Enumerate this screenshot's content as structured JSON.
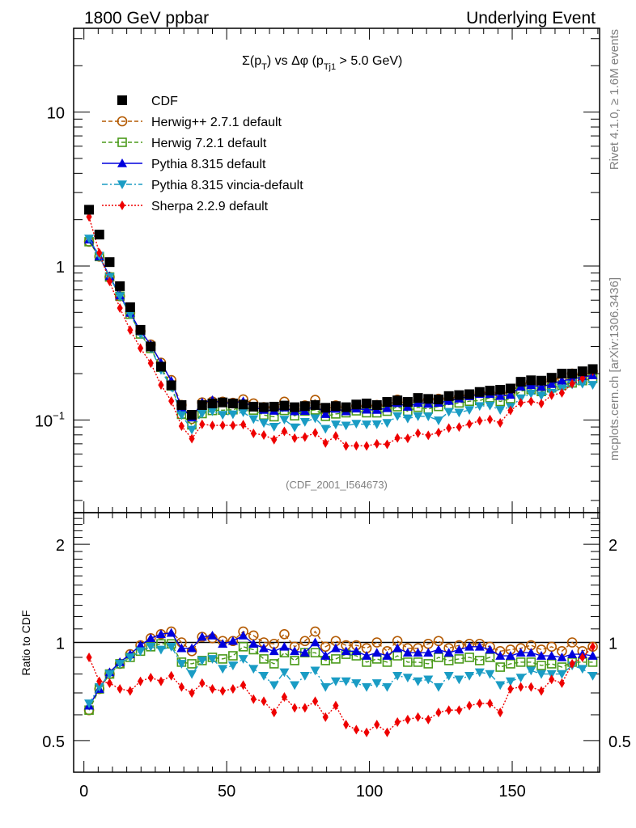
{
  "header": {
    "left": "1800 GeV ppbar",
    "right": "Underlying Event"
  },
  "side_text": {
    "rivet": "Rivet 4.1.0, ≥ 1.6M events",
    "mcplots": "mcplots.cern.ch [arXiv:1306.3436]"
  },
  "analysis_id": "(CDF_2001_I564673)",
  "chart_data": {
    "type": "scatter",
    "title": "Σ(p_T) vs Δφ (p_Tj1 > 5.0 GeV)",
    "title_parts": {
      "sigma": "Σ(p",
      "sub_t": "T",
      "mid": ") vs Δφ (p",
      "sub_tj1": "Tj1",
      "tail": " > 5.0 GeV)"
    },
    "xlabel": "",
    "ylabel": "",
    "ratio_ylabel": "Ratio to CDF",
    "xlim": [
      -3.6,
      180.6
    ],
    "ylim": [
      0.025,
      35
    ],
    "yscale": "log",
    "ratio_ylim": [
      0.4,
      2.5
    ],
    "ratio_yscale": "log",
    "x_ticks": [
      "0",
      "50",
      "100",
      "150"
    ],
    "x_tick_values": [
      0,
      50,
      100,
      150
    ],
    "y_ticks": [
      "10",
      "1",
      "10⁻¹"
    ],
    "y_tick_values": [
      10,
      1,
      0.1
    ],
    "ratio_ticks": [
      "2",
      "1",
      "0.5"
    ],
    "ratio_tick_values": [
      2,
      1,
      0.5
    ],
    "legend_position": "top-left",
    "x": [
      1.8,
      5.4,
      9,
      12.6,
      16.2,
      19.8,
      23.4,
      27,
      30.6,
      34.2,
      37.8,
      41.4,
      45,
      48.6,
      52.2,
      55.8,
      59.4,
      63,
      66.6,
      70.2,
      73.8,
      77.4,
      81,
      84.6,
      88.2,
      91.8,
      95.4,
      99,
      102.6,
      106.2,
      109.8,
      113.4,
      117,
      120.6,
      124.2,
      127.8,
      131.4,
      135,
      138.6,
      142.2,
      145.8,
      149.4,
      153,
      156.6,
      160.2,
      163.8,
      167.4,
      171,
      174.6,
      178.2
    ],
    "reference": {
      "name": "CDF",
      "color": "#000000",
      "marker": "square",
      "values": [
        2.32,
        1.6,
        1.06,
        0.74,
        0.54,
        0.385,
        0.3,
        0.222,
        0.168,
        0.125,
        0.108,
        0.125,
        0.128,
        0.13,
        0.128,
        0.126,
        0.122,
        0.121,
        0.122,
        0.124,
        0.121,
        0.123,
        0.125,
        0.12,
        0.123,
        0.121,
        0.126,
        0.128,
        0.125,
        0.131,
        0.134,
        0.131,
        0.139,
        0.137,
        0.136,
        0.143,
        0.145,
        0.147,
        0.152,
        0.155,
        0.157,
        0.16,
        0.177,
        0.181,
        0.18,
        0.188,
        0.2,
        0.2,
        0.207,
        0.214
      ]
    },
    "series": [
      {
        "name": "Herwig++ 2.7.1 default",
        "color": "#b35900",
        "marker": "open-circle",
        "line": "dashed",
        "ratio": [
          0.62,
          0.72,
          0.8,
          0.86,
          0.92,
          0.98,
          1.03,
          1.06,
          1.08,
          1.0,
          0.94,
          1.04,
          1.03,
          1.01,
          1.01,
          1.08,
          1.05,
          1.0,
          0.99,
          1.06,
          0.97,
          1.01,
          1.08,
          0.97,
          1.01,
          0.98,
          0.98,
          0.96,
          1.0,
          0.94,
          1.01,
          0.96,
          0.96,
          0.99,
          1.01,
          0.96,
          0.98,
          0.99,
          0.99,
          0.97,
          0.94,
          0.95,
          0.96,
          0.98,
          0.95,
          0.97,
          0.94,
          1.0,
          0.94,
          0.97
        ]
      },
      {
        "name": "Herwig 7.2.1 default",
        "color": "#4a9a1a",
        "marker": "open-square",
        "line": "dashed",
        "ratio": [
          0.62,
          0.72,
          0.8,
          0.86,
          0.9,
          0.94,
          0.97,
          0.99,
          0.99,
          0.87,
          0.86,
          0.88,
          0.9,
          0.89,
          0.91,
          0.97,
          0.95,
          0.89,
          0.86,
          0.93,
          0.88,
          0.93,
          0.93,
          0.88,
          0.89,
          0.92,
          0.91,
          0.87,
          0.89,
          0.87,
          0.91,
          0.87,
          0.87,
          0.86,
          0.9,
          0.88,
          0.89,
          0.9,
          0.88,
          0.9,
          0.84,
          0.86,
          0.87,
          0.87,
          0.85,
          0.86,
          0.84,
          0.87,
          0.87,
          0.87
        ]
      },
      {
        "name": "Pythia 8.315 default",
        "color": "#0000dd",
        "marker": "triangle-up",
        "line": "solid",
        "ratio": [
          0.64,
          0.72,
          0.81,
          0.87,
          0.92,
          0.98,
          1.03,
          1.06,
          1.07,
          0.96,
          0.96,
          1.04,
          1.05,
          0.99,
          1.01,
          1.05,
          0.99,
          0.96,
          0.94,
          0.97,
          0.94,
          0.93,
          1.0,
          0.91,
          0.96,
          0.94,
          0.94,
          0.91,
          0.93,
          0.91,
          0.96,
          0.93,
          0.93,
          0.93,
          0.95,
          0.93,
          0.95,
          0.97,
          0.97,
          0.95,
          0.91,
          0.91,
          0.93,
          0.93,
          0.91,
          0.91,
          0.9,
          0.92,
          0.92,
          0.91
        ]
      },
      {
        "name": "Pythia 8.315 vincia-default",
        "color": "#1a9cc4",
        "marker": "triangle-down",
        "line": "dashdot",
        "ratio": [
          0.65,
          0.73,
          0.8,
          0.86,
          0.9,
          0.94,
          0.97,
          0.95,
          0.97,
          0.86,
          0.8,
          0.88,
          0.89,
          0.83,
          0.85,
          0.89,
          0.83,
          0.79,
          0.74,
          0.81,
          0.74,
          0.79,
          0.82,
          0.73,
          0.76,
          0.76,
          0.75,
          0.73,
          0.75,
          0.73,
          0.79,
          0.78,
          0.76,
          0.77,
          0.73,
          0.79,
          0.77,
          0.79,
          0.81,
          0.8,
          0.74,
          0.76,
          0.78,
          0.82,
          0.8,
          0.8,
          0.8,
          0.85,
          0.83,
          0.79
        ]
      },
      {
        "name": "Sherpa 2.2.9 default",
        "color": "#ee0000",
        "marker": "diamond",
        "line": "dotted",
        "ratio": [
          0.9,
          0.76,
          0.75,
          0.72,
          0.71,
          0.76,
          0.78,
          0.76,
          0.79,
          0.73,
          0.7,
          0.75,
          0.72,
          0.71,
          0.72,
          0.74,
          0.67,
          0.66,
          0.61,
          0.68,
          0.63,
          0.63,
          0.66,
          0.59,
          0.64,
          0.56,
          0.54,
          0.53,
          0.56,
          0.53,
          0.57,
          0.58,
          0.59,
          0.58,
          0.61,
          0.62,
          0.62,
          0.64,
          0.65,
          0.65,
          0.61,
          0.72,
          0.73,
          0.73,
          0.71,
          0.77,
          0.75,
          0.86,
          0.9,
          0.97
        ]
      }
    ]
  }
}
